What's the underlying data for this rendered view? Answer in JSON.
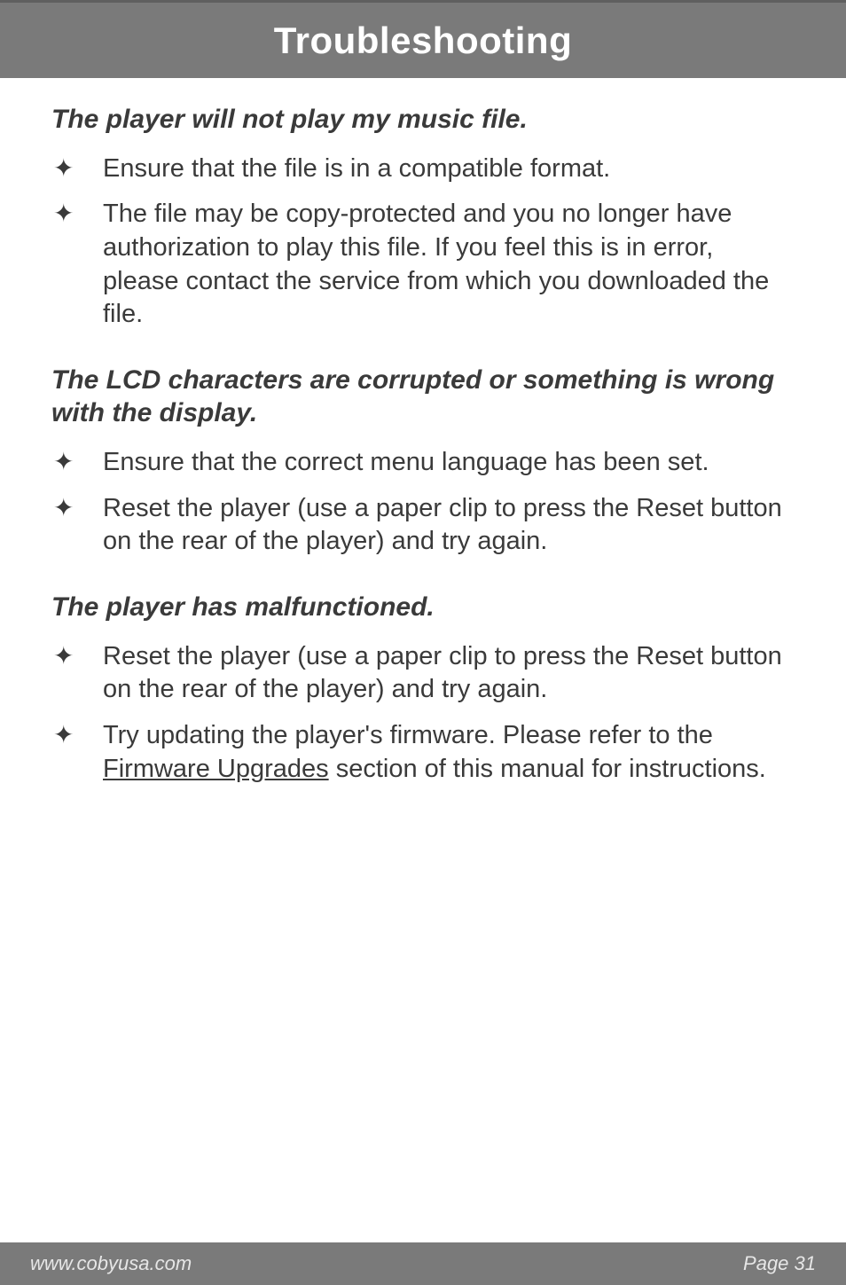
{
  "header": {
    "title": "Troubleshooting"
  },
  "sections": [
    {
      "heading": "The player will not play my music file.",
      "items": [
        {
          "text": "Ensure that the file is in a compatible format."
        },
        {
          "text": "The file may be copy-protected and you no longer have authorization to play this file. If you feel this is in error, please contact the service from which you downloaded the file."
        }
      ]
    },
    {
      "heading": "The LCD characters are corrupted or something is wrong with the display.",
      "items": [
        {
          "text": "Ensure that the correct menu language has been set."
        },
        {
          "text": "Reset the player (use a paper clip to press the Reset button on the rear of the player) and try again."
        }
      ]
    },
    {
      "heading": "The player has malfunctioned.",
      "items": [
        {
          "text": "Reset the player (use a paper clip to press the Reset button on the rear of the player) and try again."
        },
        {
          "pre": "Try updating the player's firmware. Please refer to the ",
          "link": "Firmware Upgrades",
          "post": " section of this manual for instructions."
        }
      ]
    }
  ],
  "footer": {
    "left": "www.cobyusa.com",
    "right": "Page 31"
  },
  "glyphs": {
    "star": "✦"
  },
  "colors": {
    "band": "#7a7a7a",
    "text": "#3a3a3a",
    "footerText": "#e6e6e6"
  }
}
